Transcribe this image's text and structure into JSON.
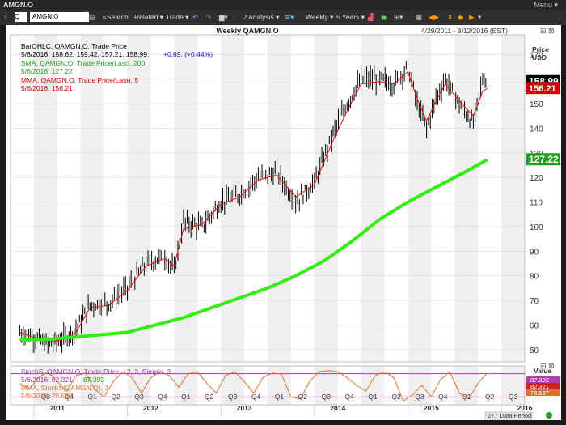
{
  "window": {
    "title": "AMGN.O",
    "menu_label": "Menu ▾"
  },
  "toolbar": {
    "symbol_type": "Q",
    "symbol": "AMGN.O",
    "search": "Search",
    "related": "Related ▾",
    "trade": "Trade ▾",
    "analysis": "Analysis ▾",
    "period": "Weekly ▾",
    "range": "5 Years ▾"
  },
  "header": {
    "title": "Weekly QAMGN.O",
    "date_range": "4/29/2011 - 8/12/2016 (EST)"
  },
  "legend": {
    "bar_label": "BarOHLC, QAMGN.O, Trade Price",
    "bar_values": "5/6/2016, 158.62, 159.42, 157.21, 158.99,",
    "bar_change": "+0.69, (+0.44%)",
    "sma_label": "SMA, QAMGN.O, Trade Price(Last), 200",
    "sma_values": "5/6/2016, 127.22",
    "mma_label": "MMA, QAMGN.O, Trade Price(Last), 5",
    "mma_values": "5/6/2016, 156.21"
  },
  "lower_legend": {
    "stoch_label": "StochS, QAMGN.O, Trade Price, 12, 3, Simple, 3",
    "stoch_values_a": "5/6/2016, 82.321,",
    "stoch_values_b": "87.393",
    "mma_label": "MMA, StochS(QAMGN.O), 3",
    "mma_values": "5/6/2016, 78.587"
  },
  "price_axis": {
    "title_line1": "Price",
    "title_line2": "USD"
  },
  "lower_axis": {
    "title": "Value"
  },
  "badges": {
    "last": "158.99",
    "mma": "156.21",
    "sma": "127.22",
    "stoch_a": "87.393",
    "stoch_b": "82.321",
    "stoch_c": "78.587"
  },
  "footer": {
    "data_period": "277 Data Period"
  },
  "colors": {
    "bars": "#000000",
    "mma": "#e01010",
    "sma": "#33ee11",
    "stoch": "#e07030",
    "stoch_band": "#a040a0",
    "badge_last": "#000000",
    "badge_mma": "#cc0000",
    "badge_sma": "#1fa01f"
  },
  "chart_data": [
    {
      "type": "line",
      "title": "Weekly QAMGN.O",
      "y_ticks": [
        50,
        60,
        70,
        80,
        90,
        100,
        110,
        120,
        130,
        140,
        150,
        160,
        170
      ],
      "ylim": [
        45,
        178
      ],
      "x_quarter_ticks": [
        "Q3",
        "Q4",
        "Q1",
        "Q2",
        "Q3",
        "Q4",
        "Q1",
        "Q2",
        "Q3",
        "Q4",
        "Q1",
        "Q2",
        "Q3",
        "Q4",
        "Q1",
        "Q2",
        "Q3",
        "Q4",
        "Q1",
        "Q2",
        "Q3"
      ],
      "x_year_labels": [
        "2011",
        "2012",
        "2013",
        "2014",
        "2015",
        "2016"
      ],
      "series": [
        {
          "name": "BarOHLC, QAMGN.O, Trade Price",
          "kind": "ohlc",
          "x": [
            2011.35,
            2011.5,
            2011.65,
            2011.8,
            2011.95,
            2012.1,
            2012.3,
            2012.5,
            2012.7,
            2012.9,
            2013.0,
            2013.1,
            2013.3,
            2013.5,
            2013.7,
            2013.9,
            2014.1,
            2014.3,
            2014.5,
            2014.7,
            2014.85,
            2015.0,
            2015.2,
            2015.35,
            2015.5,
            2015.6,
            2015.7,
            2015.8,
            2015.9,
            2016.05,
            2016.2,
            2016.3,
            2016.35
          ],
          "values": [
            57,
            55,
            52,
            54,
            58,
            68,
            69,
            75,
            85,
            88,
            82,
            102,
            100,
            110,
            113,
            120,
            122,
            110,
            118,
            138,
            150,
            160,
            160,
            158,
            165,
            150,
            140,
            152,
            160,
            150,
            142,
            160,
            159
          ]
        },
        {
          "name": "MMA, QAMGN.O, Trade Price(Last), 5",
          "x": [
            2011.35,
            2011.5,
            2011.65,
            2011.8,
            2011.95,
            2012.1,
            2012.3,
            2012.5,
            2012.7,
            2012.9,
            2013.0,
            2013.1,
            2013.3,
            2013.5,
            2013.7,
            2013.9,
            2014.1,
            2014.3,
            2014.5,
            2014.7,
            2014.85,
            2015.0,
            2015.2,
            2015.35,
            2015.5,
            2015.6,
            2015.7,
            2015.8,
            2015.9,
            2016.05,
            2016.2,
            2016.3,
            2016.35
          ],
          "values": [
            57,
            55,
            53,
            54,
            57,
            67,
            68,
            74,
            84,
            87,
            84,
            99,
            101,
            109,
            112,
            119,
            121,
            112,
            117,
            135,
            147,
            158,
            159,
            158,
            163,
            152,
            143,
            151,
            158,
            151,
            145,
            155,
            156.21
          ]
        },
        {
          "name": "SMA, QAMGN.O, Trade Price(Last), 200",
          "x": [
            2011.35,
            2011.6,
            2011.9,
            2012.2,
            2012.5,
            2012.8,
            2013.1,
            2013.4,
            2013.7,
            2014.0,
            2014.3,
            2014.6,
            2014.9,
            2015.2,
            2015.5,
            2015.8,
            2016.1,
            2016.35
          ],
          "values": [
            54,
            54,
            55,
            56,
            57,
            60,
            63,
            67,
            71,
            75,
            80,
            86,
            94,
            103,
            110,
            116,
            122,
            127.22
          ]
        }
      ]
    },
    {
      "type": "line",
      "title": "StochS, QAMGN.O, Trade Price, 12, 3, Simple, 3",
      "ylim": [
        0,
        100
      ],
      "bands": [
        20,
        80
      ],
      "series": [
        {
          "name": "StochS, QAMGN.O, Trade Price, 12, 3, Simple, 3",
          "x": [
            2011.35,
            2011.45,
            2011.55,
            2011.65,
            2011.75,
            2011.85,
            2011.95,
            2012.05,
            2012.15,
            2012.25,
            2012.35,
            2012.45,
            2012.55,
            2012.65,
            2012.75,
            2012.85,
            2012.95,
            2013.05,
            2013.15,
            2013.25,
            2013.35,
            2013.45,
            2013.55,
            2013.65,
            2013.75,
            2013.85,
            2013.95,
            2014.05,
            2014.15,
            2014.25,
            2014.35,
            2014.45,
            2014.55,
            2014.65,
            2014.75,
            2014.85,
            2014.95,
            2015.05,
            2015.15,
            2015.25,
            2015.35,
            2015.45,
            2015.55,
            2015.65,
            2015.75,
            2015.85,
            2015.95,
            2016.05,
            2016.15,
            2016.25,
            2016.35
          ],
          "values": [
            55,
            40,
            70,
            85,
            60,
            35,
            75,
            82,
            40,
            20,
            60,
            85,
            70,
            30,
            70,
            85,
            75,
            45,
            80,
            85,
            55,
            30,
            75,
            85,
            60,
            30,
            70,
            82,
            78,
            20,
            15,
            60,
            85,
            88,
            85,
            70,
            50,
            35,
            75,
            85,
            70,
            10,
            25,
            50,
            20,
            65,
            85,
            30,
            15,
            55,
            82.321
          ]
        }
      ]
    }
  ]
}
